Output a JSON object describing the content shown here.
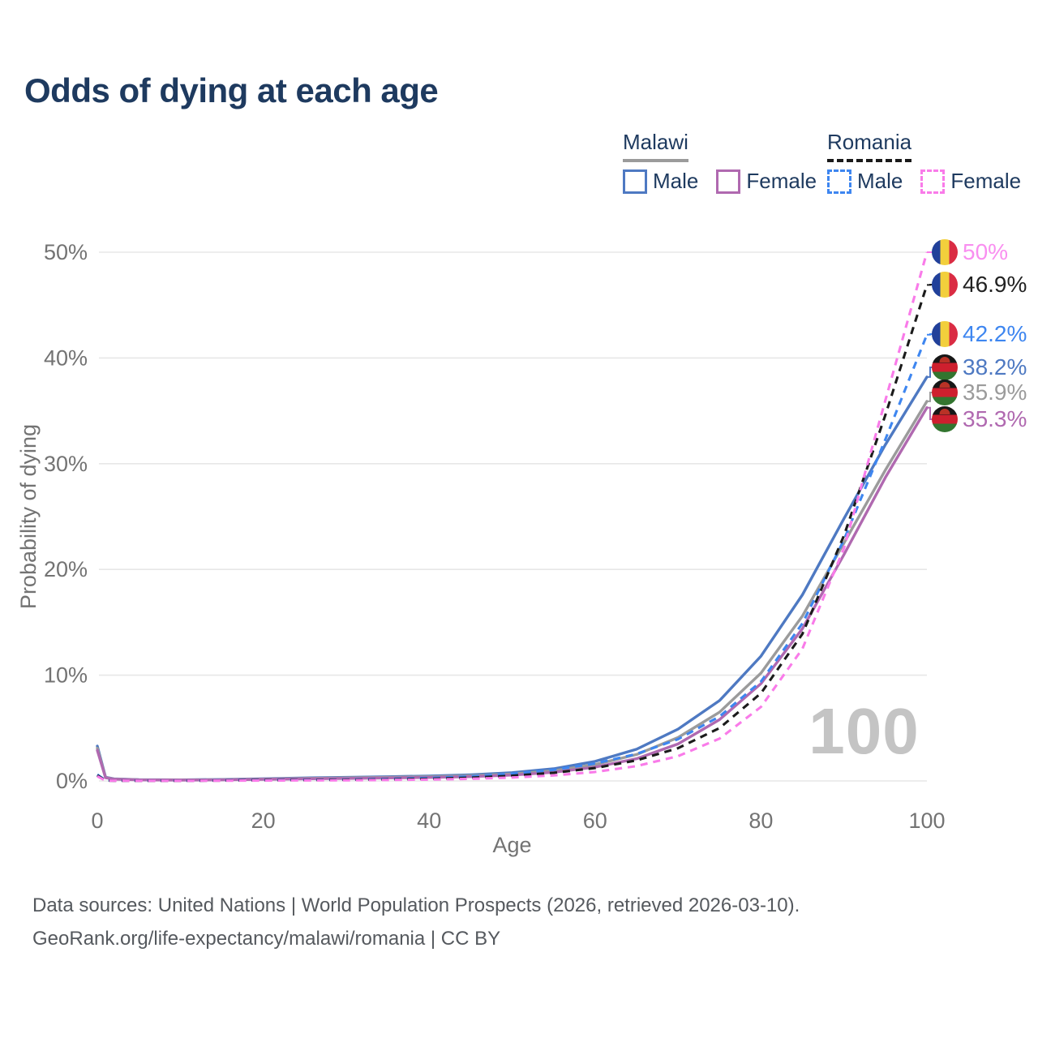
{
  "title": "Odds of dying at each age",
  "watermark": "100",
  "legend": {
    "groups": [
      {
        "country": "Malawi",
        "line_style": "solid",
        "underline_color": "#9b9b9b",
        "items": [
          {
            "label": "Male",
            "color": "#4e79c2"
          },
          {
            "label": "Female",
            "color": "#b069b0"
          }
        ]
      },
      {
        "country": "Romania",
        "line_style": "dashed",
        "underline_color": "#1a1a1a",
        "items": [
          {
            "label": "Male",
            "color": "#3e86f0"
          },
          {
            "label": "Female",
            "color": "#f97be9"
          }
        ]
      }
    ]
  },
  "axes": {
    "x": {
      "label": "Age",
      "ticks": [
        0,
        20,
        40,
        60,
        80,
        100
      ],
      "range": [
        0,
        100
      ]
    },
    "y": {
      "label": "Probability of dying",
      "tick_labels": [
        "0%",
        "10%",
        "20%",
        "30%",
        "40%",
        "50%"
      ],
      "tick_values": [
        0,
        10,
        20,
        30,
        40,
        50
      ],
      "range_percent": [
        0,
        50
      ]
    }
  },
  "end_labels": [
    {
      "text": "50%",
      "color": "#f98ff0",
      "flag": "romania",
      "series": "Romania Female"
    },
    {
      "text": "46.9%",
      "color": "#222222",
      "flag": "romania",
      "series": "Romania"
    },
    {
      "text": "42.2%",
      "color": "#3e86f0",
      "flag": "romania",
      "series": "Romania Male"
    },
    {
      "text": "38.2%",
      "color": "#4e79c2",
      "flag": "malawi",
      "series": "Malawi Male"
    },
    {
      "text": "35.9%",
      "color": "#9b9b9b",
      "flag": "malawi",
      "series": "Malawi"
    },
    {
      "text": "35.3%",
      "color": "#b069b0",
      "flag": "malawi",
      "series": "Malawi Female"
    }
  ],
  "footer": {
    "line1": "Data sources: United Nations | World Population Prospects (2026, retrieved 2026-03-10).",
    "line2": "GeoRank.org/life-expectancy/malawi/romania | CC BY"
  },
  "chart_data": {
    "type": "line",
    "title": "Odds of dying at each age",
    "xlabel": "Age",
    "ylabel": "Probability of dying",
    "xlim": [
      0,
      100
    ],
    "ylim_percent": [
      0,
      50
    ],
    "grid": "horizontal",
    "legend_position": "top-right",
    "x_unit": "years",
    "y_unit": "percent probability of dying",
    "series": [
      {
        "name": "Malawi Male",
        "country": "Malawi",
        "sex": "male",
        "style": "solid",
        "color": "#4e79c2",
        "end_value_percent": 38.2,
        "points": [
          [
            0,
            3.3
          ],
          [
            1,
            0.35
          ],
          [
            2,
            0.2
          ],
          [
            5,
            0.12
          ],
          [
            10,
            0.1
          ],
          [
            15,
            0.14
          ],
          [
            20,
            0.21
          ],
          [
            25,
            0.28
          ],
          [
            30,
            0.34
          ],
          [
            35,
            0.4
          ],
          [
            40,
            0.47
          ],
          [
            45,
            0.58
          ],
          [
            50,
            0.78
          ],
          [
            55,
            1.15
          ],
          [
            60,
            1.85
          ],
          [
            65,
            3.0
          ],
          [
            70,
            4.9
          ],
          [
            75,
            7.6
          ],
          [
            80,
            11.8
          ],
          [
            85,
            17.6
          ],
          [
            90,
            24.8
          ],
          [
            95,
            31.8
          ],
          [
            100,
            38.2
          ]
        ]
      },
      {
        "name": "Malawi",
        "country": "Malawi",
        "sex": "both",
        "style": "solid",
        "color": "#9b9b9b",
        "end_value_percent": 35.9,
        "points": [
          [
            0,
            3.1
          ],
          [
            1,
            0.32
          ],
          [
            2,
            0.18
          ],
          [
            5,
            0.11
          ],
          [
            10,
            0.09
          ],
          [
            15,
            0.12
          ],
          [
            20,
            0.18
          ],
          [
            25,
            0.24
          ],
          [
            30,
            0.29
          ],
          [
            35,
            0.34
          ],
          [
            40,
            0.4
          ],
          [
            45,
            0.49
          ],
          [
            50,
            0.66
          ],
          [
            55,
            0.97
          ],
          [
            60,
            1.55
          ],
          [
            65,
            2.5
          ],
          [
            70,
            4.1
          ],
          [
            75,
            6.5
          ],
          [
            80,
            10.2
          ],
          [
            85,
            15.6
          ],
          [
            90,
            22.5
          ],
          [
            95,
            29.4
          ],
          [
            100,
            35.9
          ]
        ]
      },
      {
        "name": "Malawi Female",
        "country": "Malawi",
        "sex": "female",
        "style": "solid",
        "color": "#b069b0",
        "end_value_percent": 35.3,
        "points": [
          [
            0,
            2.9
          ],
          [
            1,
            0.3
          ],
          [
            2,
            0.17
          ],
          [
            5,
            0.1
          ],
          [
            10,
            0.08
          ],
          [
            15,
            0.1
          ],
          [
            20,
            0.15
          ],
          [
            25,
            0.2
          ],
          [
            30,
            0.24
          ],
          [
            35,
            0.28
          ],
          [
            40,
            0.33
          ],
          [
            45,
            0.41
          ],
          [
            50,
            0.55
          ],
          [
            55,
            0.82
          ],
          [
            60,
            1.3
          ],
          [
            65,
            2.1
          ],
          [
            70,
            3.5
          ],
          [
            75,
            5.8
          ],
          [
            80,
            9.2
          ],
          [
            85,
            14.4
          ],
          [
            90,
            21.4
          ],
          [
            95,
            28.7
          ],
          [
            100,
            35.3
          ]
        ]
      },
      {
        "name": "Romania Male",
        "country": "Romania",
        "sex": "male",
        "style": "dashed",
        "color": "#3e86f0",
        "end_value_percent": 42.2,
        "points": [
          [
            0,
            0.6
          ],
          [
            1,
            0.05
          ],
          [
            2,
            0.03
          ],
          [
            5,
            0.02
          ],
          [
            10,
            0.02
          ],
          [
            15,
            0.05
          ],
          [
            20,
            0.09
          ],
          [
            25,
            0.11
          ],
          [
            30,
            0.14
          ],
          [
            35,
            0.19
          ],
          [
            40,
            0.28
          ],
          [
            45,
            0.43
          ],
          [
            50,
            0.68
          ],
          [
            55,
            1.05
          ],
          [
            60,
            1.65
          ],
          [
            65,
            2.55
          ],
          [
            70,
            3.95
          ],
          [
            75,
            6.1
          ],
          [
            80,
            9.4
          ],
          [
            85,
            14.9
          ],
          [
            90,
            22.8
          ],
          [
            95,
            32.3
          ],
          [
            100,
            42.2
          ]
        ]
      },
      {
        "name": "Romania",
        "country": "Romania",
        "sex": "both",
        "style": "dashed",
        "color": "#1b1b1b",
        "end_value_percent": 46.9,
        "points": [
          [
            0,
            0.52
          ],
          [
            1,
            0.04
          ],
          [
            2,
            0.025
          ],
          [
            5,
            0.017
          ],
          [
            10,
            0.016
          ],
          [
            15,
            0.04
          ],
          [
            20,
            0.07
          ],
          [
            25,
            0.085
          ],
          [
            30,
            0.105
          ],
          [
            35,
            0.14
          ],
          [
            40,
            0.2
          ],
          [
            45,
            0.31
          ],
          [
            50,
            0.49
          ],
          [
            55,
            0.77
          ],
          [
            60,
            1.22
          ],
          [
            65,
            1.95
          ],
          [
            70,
            3.1
          ],
          [
            75,
            5.0
          ],
          [
            80,
            8.3
          ],
          [
            85,
            13.9
          ],
          [
            90,
            23.2
          ],
          [
            95,
            34.6
          ],
          [
            100,
            46.9
          ]
        ]
      },
      {
        "name": "Romania Female",
        "country": "Romania",
        "sex": "female",
        "style": "dashed",
        "color": "#f97be9",
        "end_value_percent": 50.0,
        "points": [
          [
            0,
            0.44
          ],
          [
            1,
            0.033
          ],
          [
            2,
            0.02
          ],
          [
            5,
            0.013
          ],
          [
            10,
            0.013
          ],
          [
            15,
            0.025
          ],
          [
            20,
            0.04
          ],
          [
            25,
            0.05
          ],
          [
            30,
            0.065
          ],
          [
            35,
            0.09
          ],
          [
            40,
            0.13
          ],
          [
            45,
            0.2
          ],
          [
            50,
            0.32
          ],
          [
            55,
            0.52
          ],
          [
            60,
            0.85
          ],
          [
            65,
            1.4
          ],
          [
            70,
            2.35
          ],
          [
            75,
            4.0
          ],
          [
            80,
            7.0
          ],
          [
            85,
            12.5
          ],
          [
            90,
            22.0
          ],
          [
            95,
            36.0
          ],
          [
            100,
            50.0
          ]
        ]
      }
    ]
  }
}
